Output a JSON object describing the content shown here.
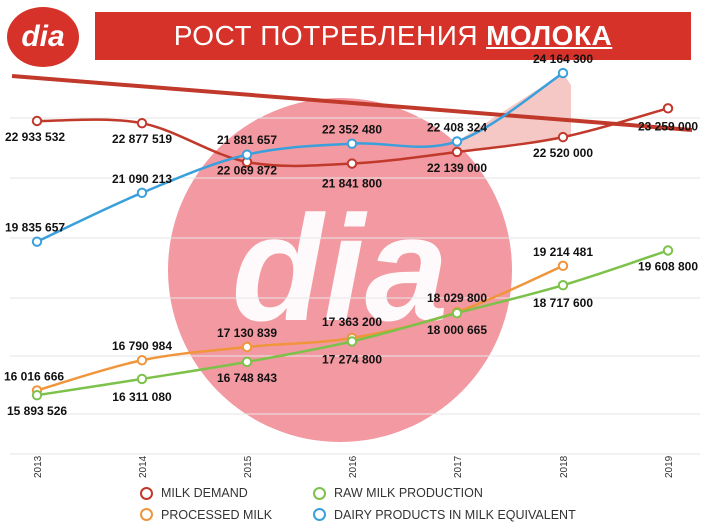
{
  "logo": {
    "text": "dia",
    "color": "#d6322a"
  },
  "header": {
    "title_normal": "РОСТ ПОТРЕБЛЕНИЯ",
    "title_bold": "МОЛОКА"
  },
  "watermark": {
    "text": "dia"
  },
  "chart_data": {
    "type": "line",
    "x": [
      "2013",
      "2014",
      "2015",
      "2016",
      "2017",
      "2018",
      "2019"
    ],
    "grid": true,
    "ylim": [
      15000000,
      24500000
    ],
    "legend_position": "bottom",
    "series": [
      {
        "name": "MILK DEMAND",
        "color": "#c0392b",
        "values": [
          22933532,
          22877519,
          21881657,
          21841800,
          22139000,
          22520000,
          23259000
        ],
        "labels": [
          "22 933 532",
          "22 877 519",
          "21 881 657",
          "21 841 800",
          "22 139 000",
          "22 520 000",
          "23 259 000"
        ]
      },
      {
        "name": "PROCESSED MILK",
        "color": "#f0953a",
        "values": [
          16016666,
          16790984,
          17130839,
          17363200,
          18029800,
          19214481,
          null
        ],
        "labels": [
          "16 016 666",
          "16 790 984",
          "17 130 839",
          "17 363 200",
          "18 029 800",
          "19 214 481",
          null
        ]
      },
      {
        "name": "RAW MILK PRODUCTION",
        "color": "#7cc24a",
        "values": [
          15893526,
          16311080,
          16748843,
          17274800,
          18000665,
          18717600,
          19608800
        ],
        "labels": [
          "15 893 526",
          "16 311 080",
          "16 748 843",
          "17 274 800",
          "18 000 665",
          "18 717 600",
          "19 608 800"
        ]
      },
      {
        "name": "DAIRY PRODUCTS IN MILK EQUIVALENT",
        "color": "#3aa0dc",
        "values": [
          19835657,
          21090213,
          22069872,
          22352480,
          22408324,
          24164300,
          null
        ],
        "labels": [
          "19 835 657",
          "21 090 213",
          "22 069 872",
          "22 352 480",
          "22 408 324",
          "24 164 300",
          null
        ]
      }
    ],
    "annotations": [
      {
        "type": "trend-arrow",
        "color": "#c0392b"
      },
      {
        "type": "shaded-gap",
        "from_series": "DAIRY PRODUCTS IN MILK EQUIVALENT",
        "to_series": "MILK DEMAND",
        "x_range": [
          "2017",
          "2018"
        ]
      }
    ]
  }
}
